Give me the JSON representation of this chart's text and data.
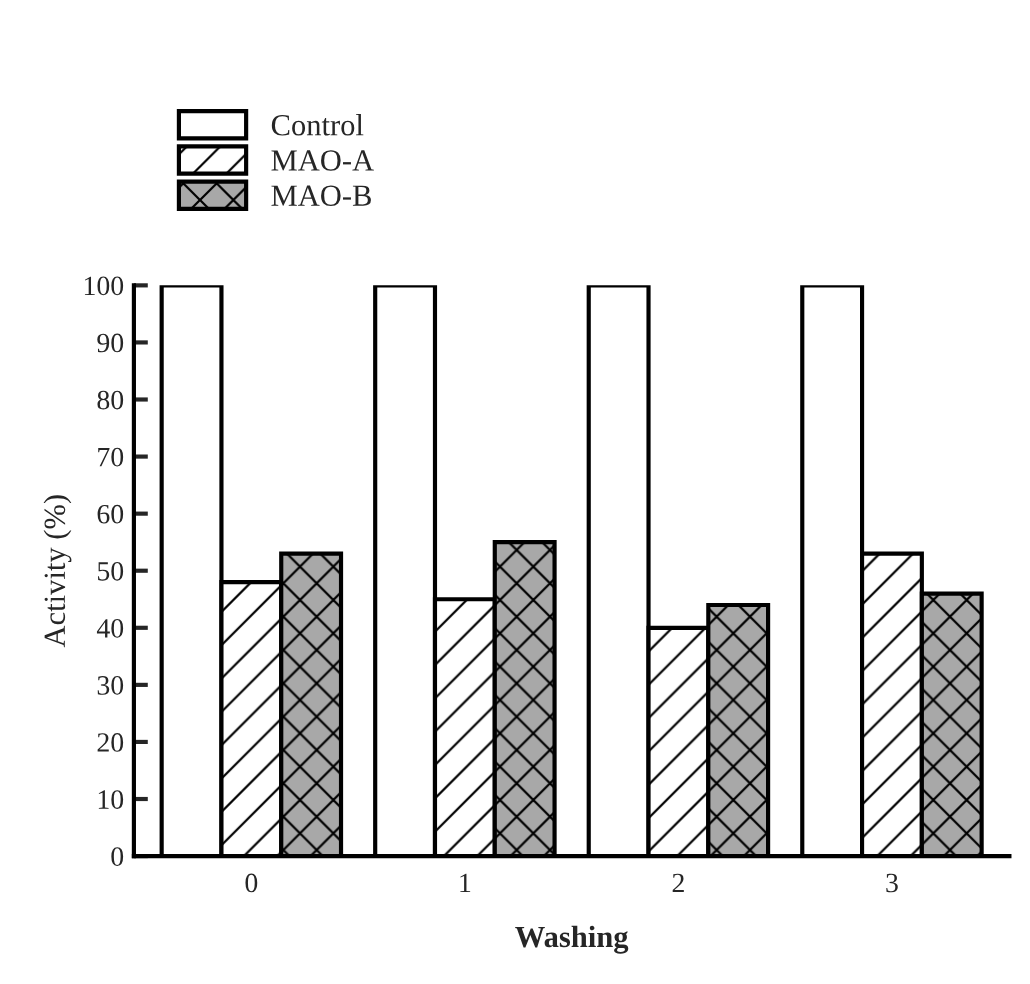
{
  "chart_data": {
    "type": "bar",
    "xlabel": "Washing",
    "ylabel": "Activity (%)",
    "categories": [
      "0",
      "1",
      "2",
      "3"
    ],
    "series": [
      {
        "name": "Control",
        "color": "#ffffff",
        "values": [
          100,
          100,
          100,
          100
        ]
      },
      {
        "name": "MAO-A",
        "color": "#ffffff",
        "values": [
          48,
          45,
          40,
          53
        ]
      },
      {
        "name": "MAO-B",
        "color": "#a8a8a8",
        "values": [
          53,
          55,
          44,
          46
        ]
      }
    ],
    "ylim": [
      0,
      100
    ],
    "yticks": [
      0,
      10,
      20,
      30,
      40,
      50,
      60,
      70,
      80,
      90,
      100
    ],
    "grid": false,
    "legend": "top left"
  }
}
